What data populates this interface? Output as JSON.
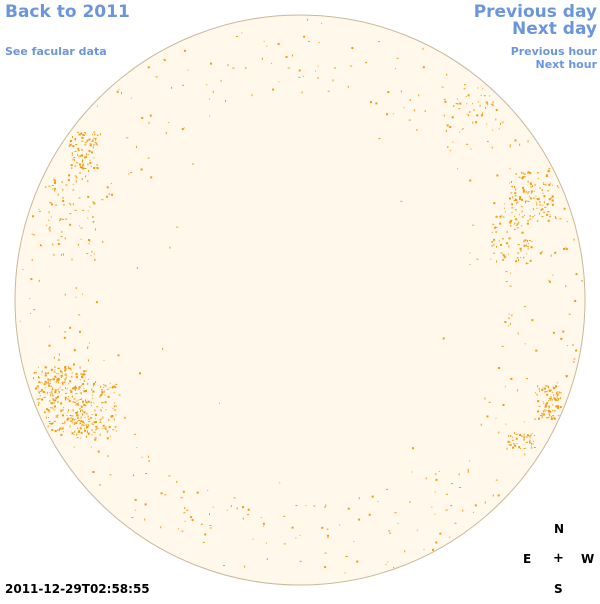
{
  "nav": {
    "back_label": "Back to 2011",
    "facular_label": "See facular data",
    "prev_day_label": "Previous day",
    "next_day_label": "Next day",
    "prev_hour_label": "Previous hour",
    "next_hour_label": "Next hour"
  },
  "compass": {
    "north": "N",
    "east": "E",
    "center": "+",
    "west": "W",
    "south": "S"
  },
  "timestamp": "2011-12-29T02:58:55",
  "colors": {
    "link": "#6b95dc",
    "disk_fill": "#fff8eb",
    "disk_border": "#c9b89a",
    "facula": "#f39c12"
  }
}
